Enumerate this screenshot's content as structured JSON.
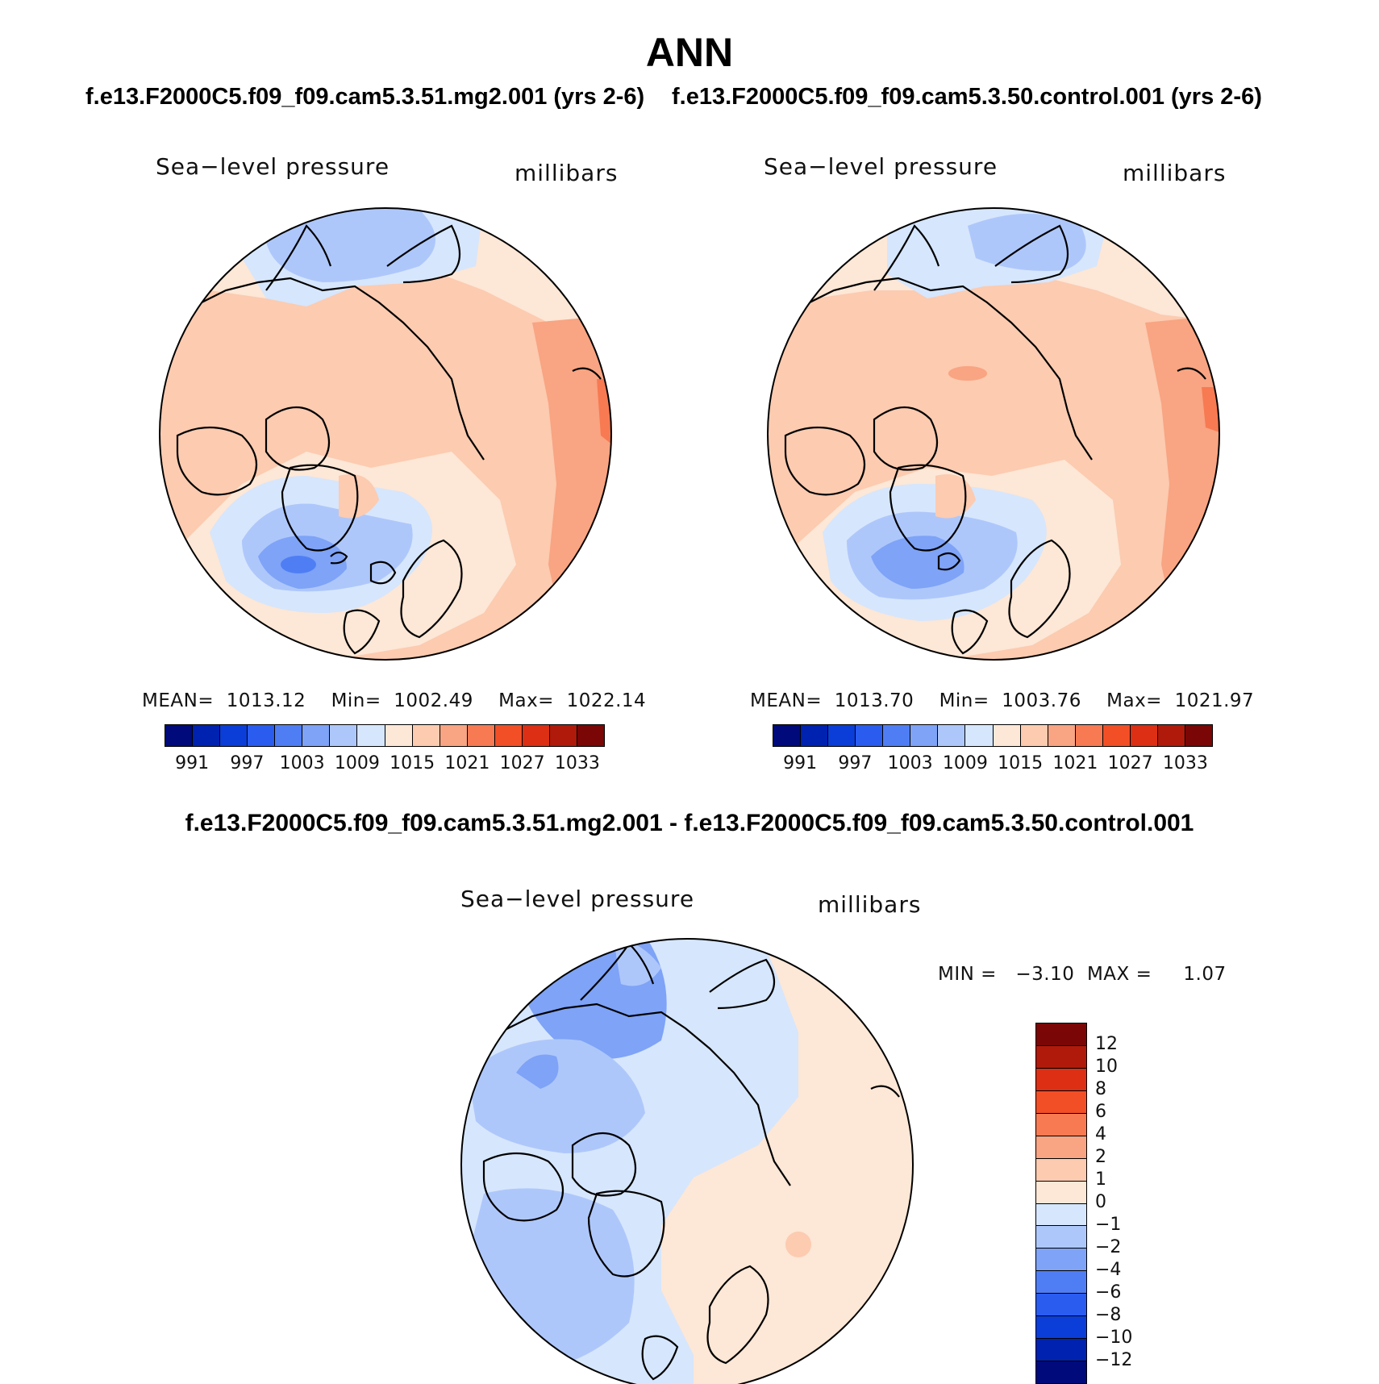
{
  "title": "ANN",
  "panels": [
    {
      "subtitle": "f.e13.F2000C5.f09_f09.cam5.3.51.mg2.001 (yrs 2-6)",
      "variable": "Sea−level pressure",
      "units": "millibars",
      "stats": "MEAN=  1013.12    Min=  1002.49    Max=  1022.14"
    },
    {
      "subtitle": "f.e13.F2000C5.f09_f09.cam5.3.50.control.001 (yrs 2-6)",
      "variable": "Sea−level pressure",
      "units": "millibars",
      "stats": "MEAN=  1013.70    Min=  1003.76    Max=  1021.97"
    }
  ],
  "difference": {
    "title": "f.e13.F2000C5.f09_f09.cam5.3.51.mg2.001 - f.e13.F2000C5.f09_f09.cam5.3.50.control.001",
    "variable": "Sea−level pressure",
    "units": "millibars",
    "stats": "MIN =   −3.10  MAX =     1.07"
  },
  "colorbar_abs": {
    "colors": [
      "#000a7a",
      "#0022b0",
      "#0b3ed8",
      "#2a5cf0",
      "#4f7ef4",
      "#7ea3f7",
      "#aec7fb",
      "#d6e6fc",
      "#fde7d6",
      "#fccbb0",
      "#f9a482",
      "#f77a52",
      "#f24f27",
      "#dc2f14",
      "#b01a0a",
      "#7a0606"
    ],
    "labels": [
      "991",
      "997",
      "1003",
      "1009",
      "1015",
      "1021",
      "1027",
      "1033"
    ]
  },
  "colorbar_diff": {
    "colors": [
      "#7a0606",
      "#b01a0a",
      "#dc2f14",
      "#f24f27",
      "#f77a52",
      "#f9a482",
      "#fccbb0",
      "#fde7d6",
      "#d6e6fc",
      "#aec7fb",
      "#7ea3f7",
      "#4f7ef4",
      "#2a5cf0",
      "#0b3ed8",
      "#0022b0",
      "#000a7a"
    ],
    "labels": [
      "12",
      "10",
      "8",
      "6",
      "4",
      "2",
      "1",
      "0",
      "−1",
      "−2",
      "−4",
      "−6",
      "−8",
      "−10",
      "−12"
    ]
  },
  "map_colors": {
    "slp_high1": "#fde7d6",
    "slp_high2": "#fccbb0",
    "slp_high3": "#f9a482",
    "slp_high4": "#f77a52",
    "slp_low1": "#d6e6fc",
    "slp_low2": "#aec7fb",
    "slp_low3": "#7ea3f7",
    "slp_low4": "#4f7ef4"
  }
}
